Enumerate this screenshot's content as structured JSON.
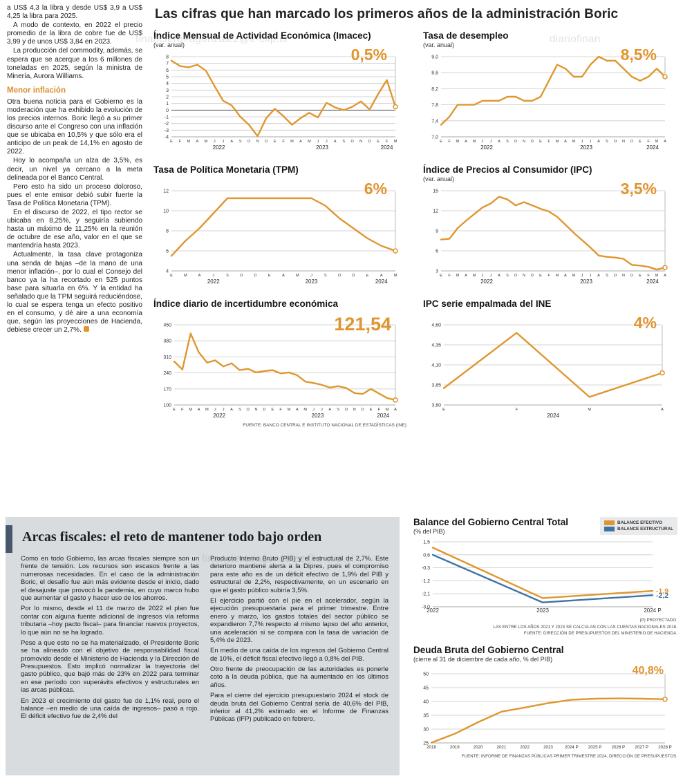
{
  "accent_colors": {
    "orange": "#E0962F",
    "blue": "#3D74A6"
  },
  "watermarks": [
    "financiero#agonzalez@e-clip.cl",
    "diariofinan",
    "financiero#agonzalez@e-clip.cl"
  ],
  "left_column": {
    "paragraphs": [
      "a US$ 4,3 la libra y desde US$ 3,9 a US$ 4,25 la libra para 2025.",
      "A modo de contexto, en 2022 el precio promedio de la libra de cobre fue de US$ 3,99 y de unos US$ 3,84 en 2023.",
      "La producción del commodity, además, se espera que se acerque a los 6 millones de toneladas en 2025, según la ministra de Minería, Aurora Williams."
    ],
    "subhead": "Menor inflación",
    "paragraphs2": [
      "Otra buena noticia para el Gobierno es la moderación que ha exhibido la evolución de los precios internos. Boric llegó a su primer discurso ante el Congreso con una inflación que se ubicaba en 10,5% y que sólo era el anticipo de un peak de 14,1% en agosto de 2022.",
      "Hoy lo acompaña un alza de 3,5%, es decir, un nivel ya cercano a la meta delineada por el Banco Central.",
      "Pero esto ha sido un proceso doloroso, pues el ente emisor debió subir fuerte la Tasa de Política Monetaria (TPM).",
      "En el discurso de 2022, el tipo rector se ubicaba en 8,25%, y seguiría subiendo hasta un máximo de 11,25% en la reunión de octubre de ese año, valor en el que se mantendría hasta 2023.",
      "Actualmente, la tasa clave protagoniza una senda de bajas –de la mano de una menor inflación–, por lo cual el Consejo del banco ya la ha recortado en 525 puntos base para situarla en 6%. Y la entidad ha señalado que la TPM seguirá reduciéndose, lo cual se espera tenga un efecto positivo en el consumo, y dé aire a una economía que, según las proyecciones de Hacienda, debiese crecer un 2,7%."
    ]
  },
  "main": {
    "title": "Las cifras que han marcado los primeros años de la administración Boric"
  },
  "chart_data": [
    {
      "type": "line",
      "title": "Índice Mensual de Actividad Económica (Imacec)",
      "subtitle": "(var. anual)",
      "callout": "0,5%",
      "ylim": [
        -4,
        8
      ],
      "yticks": [
        8,
        7,
        6,
        5,
        4,
        3,
        2,
        1,
        0,
        -1,
        -2,
        -3,
        -4
      ],
      "ytick_labels": [
        "8",
        "7",
        "6",
        "5",
        "4",
        "3",
        "2",
        "1",
        "0",
        "-1",
        "-2",
        "-3",
        "-4"
      ],
      "zero_line": true,
      "xticklabels": [
        "E",
        "F",
        "M",
        "A",
        "M",
        "J",
        "J",
        "A",
        "S",
        "O",
        "N",
        "D",
        "E",
        "F",
        "M",
        "A",
        "M",
        "J",
        "J",
        "A",
        "S",
        "O",
        "N",
        "D",
        "E",
        "F",
        "M"
      ],
      "year_groups": [
        {
          "label": "2022",
          "from": 0,
          "to": 11
        },
        {
          "label": "2023",
          "from": 12,
          "to": 23
        },
        {
          "label": "2024",
          "from": 24,
          "to": 26
        }
      ],
      "series": [
        {
          "name": "Imacec var. anual",
          "color": "#E0962F",
          "values": [
            7.4,
            6.6,
            6.4,
            6.8,
            5.9,
            3.6,
            1.4,
            0.7,
            -1.0,
            -2.2,
            -3.9,
            -1.2,
            0.2,
            -0.9,
            -2.2,
            -1.2,
            -0.4,
            -1.1,
            1.1,
            0.4,
            0.0,
            0.5,
            1.3,
            0.1,
            2.4,
            4.5,
            0.5
          ]
        }
      ],
      "end_marker": true,
      "margins": {
        "l": 26,
        "r": 16,
        "t": 10,
        "b": 24
      }
    },
    {
      "type": "line",
      "title": "Tasa de desempleo",
      "subtitle": "(var. anual)",
      "callout": "8,5%",
      "ylim": [
        7.0,
        9.0
      ],
      "yticks": [
        9.0,
        8.6,
        8.2,
        7.8,
        7.4,
        7.0
      ],
      "ytick_labels": [
        "9,0",
        "8,6",
        "8,2",
        "7,8",
        "7,4",
        "7,0"
      ],
      "xticklabels": [
        "E",
        "F",
        "M",
        "A",
        "M",
        "J",
        "J",
        "A",
        "S",
        "O",
        "N",
        "D",
        "E",
        "F",
        "M",
        "A",
        "M",
        "J",
        "J",
        "A",
        "S",
        "O",
        "N",
        "D",
        "E",
        "F",
        "M",
        "A"
      ],
      "year_groups": [
        {
          "label": "2022",
          "from": 0,
          "to": 11
        },
        {
          "label": "2023",
          "from": 12,
          "to": 23
        },
        {
          "label": "2024",
          "from": 24,
          "to": 27
        }
      ],
      "series": [
        {
          "name": "Tasa de desempleo",
          "color": "#E0962F",
          "values": [
            7.3,
            7.5,
            7.8,
            7.8,
            7.8,
            7.9,
            7.9,
            7.9,
            8.0,
            8.0,
            7.9,
            7.9,
            8.0,
            8.4,
            8.8,
            8.7,
            8.5,
            8.5,
            8.8,
            9.0,
            8.9,
            8.9,
            8.7,
            8.5,
            8.4,
            8.5,
            8.7,
            8.5
          ]
        }
      ],
      "end_marker": true,
      "margins": {
        "l": 26,
        "r": 16,
        "t": 10,
        "b": 24
      }
    },
    {
      "type": "line",
      "title": "Tasa de Política Monetaria (TPM)",
      "subtitle": "",
      "callout": "6%",
      "ylim": [
        4,
        12
      ],
      "yticks": [
        12,
        10,
        8,
        6,
        4
      ],
      "ytick_labels": [
        "12",
        "10",
        "8",
        "6",
        "4"
      ],
      "xticklabels": [
        "E",
        "M",
        "A",
        "J",
        "S",
        "O",
        "D",
        "E",
        "A",
        "M",
        "J",
        "S",
        "O",
        "D",
        "E",
        "A",
        "M"
      ],
      "year_groups": [
        {
          "label": "2022",
          "from": 0,
          "to": 6
        },
        {
          "label": "2023",
          "from": 7,
          "to": 13
        },
        {
          "label": "2024",
          "from": 14,
          "to": 16
        }
      ],
      "series": [
        {
          "name": "TPM",
          "color": "#E0962F",
          "values": [
            5.5,
            7.0,
            8.25,
            9.75,
            11.25,
            11.25,
            11.25,
            11.25,
            11.25,
            11.25,
            11.25,
            10.5,
            9.25,
            8.25,
            7.25,
            6.5,
            6.0
          ]
        }
      ],
      "end_marker": true,
      "margins": {
        "l": 26,
        "r": 16,
        "t": 10,
        "b": 24
      }
    },
    {
      "type": "line",
      "title": "Índice de Precios al Consumidor (IPC)",
      "subtitle": "(var. anual)",
      "callout": "3,5%",
      "ylim": [
        3,
        15
      ],
      "yticks": [
        15,
        12,
        9,
        6,
        3
      ],
      "ytick_labels": [
        "15",
        "12",
        "9",
        "6",
        "3"
      ],
      "xticklabels": [
        "E",
        "F",
        "M",
        "A",
        "M",
        "J",
        "J",
        "A",
        "S",
        "O",
        "N",
        "D",
        "E",
        "F",
        "M",
        "A",
        "M",
        "J",
        "J",
        "A",
        "S",
        "O",
        "N",
        "D",
        "E",
        "F",
        "M",
        "A"
      ],
      "year_groups": [
        {
          "label": "2022",
          "from": 0,
          "to": 11
        },
        {
          "label": "2023",
          "from": 12,
          "to": 23
        },
        {
          "label": "2024",
          "from": 24,
          "to": 27
        }
      ],
      "series": [
        {
          "name": "IPC var. anual",
          "color": "#E0962F",
          "values": [
            7.7,
            7.8,
            9.4,
            10.5,
            11.5,
            12.5,
            13.1,
            14.1,
            13.7,
            12.8,
            13.3,
            12.8,
            12.3,
            11.9,
            11.1,
            9.9,
            8.7,
            7.6,
            6.5,
            5.3,
            5.1,
            5.0,
            4.8,
            3.9,
            3.8,
            3.6,
            3.2,
            3.5
          ]
        }
      ],
      "end_marker": true,
      "margins": {
        "l": 26,
        "r": 16,
        "t": 10,
        "b": 24
      }
    },
    {
      "type": "line",
      "title": "Índice diario de incertidumbre económica",
      "subtitle": "",
      "callout": "121,54",
      "ylim": [
        100,
        450
      ],
      "yticks": [
        450,
        380,
        310,
        240,
        170,
        100
      ],
      "ytick_labels": [
        "450",
        "380",
        "310",
        "240",
        "170",
        "100"
      ],
      "xticklabels": [
        "E",
        "F",
        "M",
        "A",
        "M",
        "J",
        "J",
        "A",
        "S",
        "O",
        "N",
        "D",
        "E",
        "F",
        "M",
        "A",
        "M",
        "J",
        "J",
        "A",
        "S",
        "O",
        "N",
        "D",
        "E",
        "F",
        "M",
        "A"
      ],
      "year_groups": [
        {
          "label": "2022",
          "from": 0,
          "to": 11
        },
        {
          "label": "2023",
          "from": 12,
          "to": 23
        },
        {
          "label": "2024",
          "from": 24,
          "to": 27
        }
      ],
      "series": [
        {
          "name": "Incertidumbre económica",
          "color": "#E0962F",
          "values": [
            290,
            255,
            412,
            330,
            285,
            295,
            268,
            282,
            252,
            258,
            242,
            248,
            252,
            238,
            242,
            230,
            202,
            196,
            188,
            176,
            182,
            174,
            152,
            148,
            170,
            150,
            130,
            121.54
          ]
        }
      ],
      "end_marker": true,
      "source": "FUENTE: BANCO CENTRAL E INSTITUTO NACIONAL DE ESTADÍSTICAS (INE)",
      "margins": {
        "l": 30,
        "r": 16,
        "t": 10,
        "b": 24
      }
    },
    {
      "type": "line",
      "title": "IPC serie empalmada del INE",
      "subtitle": "",
      "callout": "4%",
      "ylim": [
        3.6,
        4.6
      ],
      "yticks": [
        4.6,
        4.35,
        4.1,
        3.85,
        3.6
      ],
      "ytick_labels": [
        "4,60",
        "4,35",
        "4,10",
        "3,85",
        "3,60"
      ],
      "xticklabels": [
        "E",
        "F",
        "M",
        "A"
      ],
      "year_groups": [
        {
          "label": "2024",
          "from": 0,
          "to": 3
        }
      ],
      "series": [
        {
          "name": "IPC serie empalmada",
          "color": "#E0962F",
          "values": [
            3.81,
            4.5,
            3.7,
            4.0
          ]
        }
      ],
      "end_marker": true,
      "margins": {
        "l": 30,
        "r": 20,
        "t": 10,
        "b": 24
      }
    },
    {
      "type": "line",
      "title": "Balance del Gobierno Central Total",
      "subtitle": "(% del PIB)",
      "ylim": [
        -3.0,
        1.5
      ],
      "yticks": [
        1.5,
        0.6,
        -0.3,
        -1.2,
        -2.1,
        -3.0
      ],
      "ytick_labels": [
        "1,5",
        "0,6",
        "-0,3",
        "-1,2",
        "-2,1",
        "-3,0"
      ],
      "xticklabels": [
        "2022",
        "2023",
        "2024 P"
      ],
      "xfont": 8,
      "legend": [
        {
          "label": "BALANCE EFECTIVO",
          "color": "#E0962F"
        },
        {
          "label": "BALANCE ESTRUCTURAL",
          "color": "#3D74A6"
        }
      ],
      "series": [
        {
          "name": "BALANCE EFECTIVO",
          "color": "#E0962F",
          "values": [
            1.1,
            -2.4,
            -1.9
          ],
          "end_label": "-1,9"
        },
        {
          "name": "BALANCE ESTRUCTURAL",
          "color": "#3D74A6",
          "values": [
            0.6,
            -2.7,
            -2.2
          ],
          "end_label": "-2,2"
        }
      ],
      "note1": "(P) PROYECTADO.",
      "note2": "LAS ENTRE LOS AÑOS 2021 Y 2023 SE CALCULAN  CON LAS CUENTAS NACIONALES 2018.",
      "note3": "FUENTE: DIRECCIÓN DE PRESUPUESTOS DEL MINISTERIO DE HACIENDA.",
      "margins": {
        "l": 28,
        "r": 36,
        "t": 8,
        "b": 14
      }
    },
    {
      "type": "line",
      "title": "Deuda Bruta del Gobierno Central",
      "subtitle": "(cierre al 31 de diciembre de cada año, % del PIB)",
      "callout": "40,8%",
      "ylim": [
        25,
        50
      ],
      "yticks": [
        50,
        45,
        40,
        35,
        30,
        25
      ],
      "ytick_labels": [
        "50",
        "45",
        "40",
        "35",
        "30",
        "25"
      ],
      "xticklabels": [
        "2018",
        "2019",
        "2020",
        "2021",
        "2022",
        "2023",
        "2024 P",
        "2025 P",
        "2026 P",
        "2027 P",
        "2028 P"
      ],
      "xfont": 6.2,
      "series": [
        {
          "name": "Deuda bruta % del PIB",
          "color": "#E0962F",
          "values": [
            25.1,
            28.3,
            32.5,
            36.3,
            37.8,
            39.4,
            40.6,
            41.0,
            41.1,
            41.0,
            40.8
          ]
        }
      ],
      "end_marker": true,
      "footnote": "FUENTE: INFORME DE FINANZAS PÚBLICAS PRIMER TRIMESTRE 2024, DIRECCIÓN DE PRESUPUESTOS.",
      "margins": {
        "l": 26,
        "r": 18,
        "t": 14,
        "b": 14
      }
    }
  ],
  "bottom": {
    "headline": "Arcas fiscales: el reto de mantener todo bajo orden",
    "col1": [
      "Como en todo Gobierno, las arcas fiscales siempre son un frente de tensión. Los recursos son escasos frente a las numerosas necesidades. En el caso de la administración Boric, el desafío fue aún más evidente desde el inicio, dado el desajuste que provocó la pandemia, en cuyo marco hubo que aumentar el gasto y hacer uso de los ahorros.",
      "Por lo mismo, desde el 11 de marzo de 2022 el plan fue contar con alguna fuente adicional de ingresos vía reforma tributaria –hoy pacto fiscal– para financiar nuevos proyectos, lo que aún no se ha logrado.",
      "Pese a que esto no se ha materializado, el Presidente Boric se ha alineado con el objetivo de responsabilidad fiscal promovido desde el Ministerio de Hacienda y la Dirección de Presupuestos. Esto implicó normalizar la trayectoria del gasto público, que bajó más de 23% en 2022 para terminar en ese período con superávits efectivos y estructurales en las arcas públicas.",
      "En 2023 el crecimiento del gasto fue de 1,1% real, pero el balance –en medio de una caída de ingresos– pasó a rojo. El déficit efectivo fue de 2,4% del"
    ],
    "col2": [
      "Producto Interno Bruto (PIB) y el estructural de 2,7%. Este deterioro mantiene alerta a la Dipres, pues el compromiso para este año es de un déficit efectivo de 1,9% del PIB y estructural de 2,2%, respectivamente, en un escenario en que el gasto público subiría 3,5%.",
      "El ejercicio partió con el pie en el acelerador, según la ejecución presupuestaria para el primer trimestre. Entre enero y marzo, los gastos totales del sector público se expandieron 7,7% respecto al mismo lapso del año anterior, una aceleración si se compara con la tasa de variación de 5,4% de 2023.",
      "En medio de una caída de los ingresos del Gobierno Central de 10%, el déficit fiscal efectivo llegó a 0,8% del PIB.",
      "Otro frente de preocupación de las autoridades es ponerle coto a la deuda pública, que ha aumentado en los últimos años.",
      "Para el cierre del ejercicio presupuestario 2024 el stock de deuda bruta del Gobierno Central sería de 40,6% del PIB, inferior al 41,2% estimado en el Informe de Finanzas Públicas (IFP) publicado en febrero."
    ]
  }
}
